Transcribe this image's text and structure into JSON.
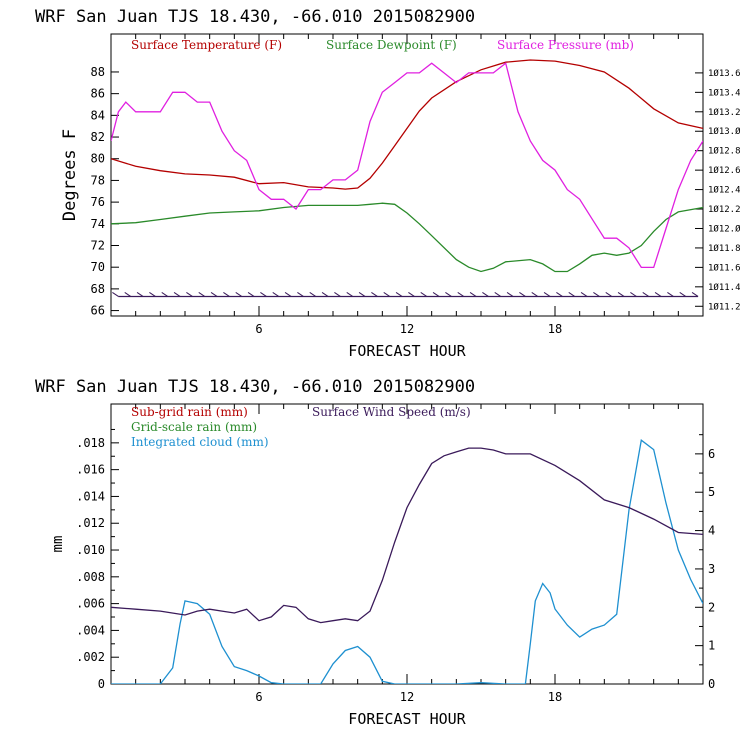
{
  "chart_data": [
    {
      "type": "line",
      "title": "WRF   San Juan TJS  18.430, -66.010  2015082900",
      "xlabel": "FORECAST HOUR",
      "ylabel": "Degrees F",
      "xlim": [
        0,
        24
      ],
      "xticks": [
        6,
        12,
        18
      ],
      "ylim": [
        65.5,
        91.5
      ],
      "yticks": [
        66,
        68,
        70,
        72,
        74,
        76,
        78,
        80,
        82,
        84,
        86,
        88
      ],
      "y2lim": [
        1011.1,
        1014.0
      ],
      "y2ticks": [
        1011.2,
        1011.4,
        1011.6,
        1011.8,
        1012.0,
        1012.2,
        1012.4,
        1012.6,
        1012.8,
        1013.0,
        1013.2,
        1013.4,
        1013.6
      ],
      "grid": false,
      "legend": "top-left",
      "series": [
        {
          "name": "Surface Temperature (F)",
          "color": "#b40000",
          "axis": "left",
          "x": [
            0,
            1,
            2,
            3,
            4,
            5,
            6,
            7,
            8,
            9,
            9.5,
            10,
            10.5,
            11,
            11.5,
            12,
            12.5,
            13,
            14,
            15,
            16,
            17,
            18,
            19,
            20,
            21,
            22,
            23,
            24
          ],
          "y": [
            80.0,
            79.3,
            78.9,
            78.6,
            78.5,
            78.3,
            77.7,
            77.8,
            77.4,
            77.3,
            77.2,
            77.3,
            78.2,
            79.6,
            81.2,
            82.8,
            84.4,
            85.6,
            87.1,
            88.2,
            88.9,
            89.1,
            89.0,
            88.6,
            88.0,
            86.5,
            84.6,
            83.3,
            82.8
          ]
        },
        {
          "name": "Surface Dewpoint (F)",
          "color": "#2a8a2a",
          "axis": "left",
          "x": [
            0,
            1,
            2,
            3,
            4,
            5,
            6,
            7,
            8,
            9,
            10,
            10.5,
            11,
            11.5,
            12,
            12.5,
            13,
            14,
            14.5,
            15,
            15.5,
            16,
            17,
            17.5,
            18,
            18.5,
            19,
            19.5,
            20,
            20.5,
            21,
            21.5,
            22,
            22.5,
            23,
            24
          ],
          "y": [
            74.0,
            74.1,
            74.4,
            74.7,
            75.0,
            75.1,
            75.2,
            75.5,
            75.7,
            75.7,
            75.7,
            75.8,
            75.9,
            75.8,
            75.0,
            74.0,
            72.9,
            70.7,
            70.0,
            69.6,
            69.9,
            70.5,
            70.7,
            70.3,
            69.6,
            69.6,
            70.3,
            71.1,
            71.3,
            71.1,
            71.3,
            72.0,
            73.3,
            74.4,
            75.1,
            75.5
          ]
        },
        {
          "name": "Surface Pressure (mb)",
          "color": "#e020e0",
          "axis": "right",
          "x": [
            0,
            0.3,
            0.6,
            1,
            1.5,
            2,
            2.5,
            3,
            3.5,
            4,
            4.5,
            5,
            5.5,
            6,
            6.5,
            7,
            7.5,
            8,
            8.5,
            9,
            9.5,
            10,
            10.5,
            11,
            11.5,
            12,
            12.5,
            13,
            13.5,
            14,
            14.5,
            15,
            15.5,
            16,
            16.5,
            17,
            17.5,
            18,
            18.5,
            19,
            19.5,
            20,
            20.5,
            21,
            21.5,
            22,
            22.5,
            23,
            23.5,
            24
          ],
          "y": [
            1012.9,
            1013.2,
            1013.3,
            1013.2,
            1013.2,
            1013.2,
            1013.4,
            1013.4,
            1013.3,
            1013.3,
            1013.0,
            1012.8,
            1012.7,
            1012.4,
            1012.3,
            1012.3,
            1012.2,
            1012.4,
            1012.4,
            1012.5,
            1012.5,
            1012.6,
            1013.1,
            1013.4,
            1013.5,
            1013.6,
            1013.6,
            1013.7,
            1013.6,
            1013.5,
            1013.6,
            1013.6,
            1013.6,
            1013.7,
            1013.2,
            1012.9,
            1012.7,
            1012.6,
            1012.4,
            1012.3,
            1012.1,
            1011.9,
            1011.9,
            1011.8,
            1011.6,
            1011.6,
            1012.0,
            1012.4,
            1012.7,
            1012.9
          ]
        }
      ],
      "wind_barbs": {
        "name": "Surface wind barbs",
        "color": "#3a1a5a",
        "y": 67.3,
        "x": [
          0.3,
          0.8,
          1.3,
          1.8,
          2.3,
          2.8,
          3.3,
          3.8,
          4.3,
          4.8,
          5.3,
          5.8,
          6.3,
          6.8,
          7.3,
          7.8,
          8.3,
          8.8,
          9.3,
          9.8,
          10.3,
          10.8,
          11.3,
          11.8,
          12.3,
          12.8,
          13.3,
          13.8,
          14.3,
          14.8,
          15.3,
          15.8,
          16.3,
          16.8,
          17.3,
          17.8,
          18.3,
          18.8,
          19.3,
          19.8,
          20.3,
          20.8,
          21.3,
          21.8,
          22.3,
          22.8,
          23.3,
          23.8
        ]
      }
    },
    {
      "type": "line",
      "title": "WRF   San Juan TJS  18.430, -66.010  2015082900",
      "xlabel": "FORECAST HOUR",
      "ylabel": "mm",
      "xlim": [
        0,
        24
      ],
      "xticks": [
        6,
        12,
        18
      ],
      "ylim": [
        0,
        0.0209
      ],
      "yticks": [
        0,
        0.002,
        0.004,
        0.006,
        0.008,
        0.01,
        0.012,
        0.014,
        0.016,
        0.018
      ],
      "ytick_labels": [
        "0",
        ".002",
        ".004",
        ".006",
        ".008",
        ".010",
        ".012",
        ".014",
        ".016",
        ".018"
      ],
      "y2lim": [
        0,
        7.3
      ],
      "y2ticks": [
        0,
        1,
        2,
        3,
        4,
        5,
        6
      ],
      "grid": false,
      "legend": "top-left",
      "series": [
        {
          "name": "Sub-grid rain (mm)",
          "color": "#b40000",
          "axis": "left",
          "x": [],
          "y": []
        },
        {
          "name": "Grid-scale rain (mm)",
          "color": "#2a8a2a",
          "axis": "left",
          "x": [],
          "y": []
        },
        {
          "name": "Integrated cloud (mm)",
          "color": "#1e90d0",
          "axis": "left",
          "x": [
            0,
            1.5,
            2,
            2.5,
            2.8,
            3,
            3.5,
            4,
            4.5,
            5,
            5.5,
            6,
            6.5,
            7,
            8,
            8.5,
            9,
            9.5,
            10,
            10.5,
            11,
            11.5,
            12,
            13,
            14,
            15,
            16,
            16.8,
            17,
            17.2,
            17.5,
            17.8,
            18,
            18.5,
            19,
            19.5,
            20,
            20.5,
            21,
            21.5,
            22,
            22.5,
            23,
            23.5,
            24
          ],
          "y": [
            0,
            0,
            0,
            0.0012,
            0.0045,
            0.0062,
            0.006,
            0.0052,
            0.0028,
            0.0013,
            0.001,
            0.0006,
            0.0001,
            0,
            0,
            0,
            0.0015,
            0.0025,
            0.0028,
            0.002,
            0.0002,
            0,
            0,
            0,
            0,
            0.0001,
            0,
            0,
            0.003,
            0.0062,
            0.0075,
            0.0068,
            0.0056,
            0.0044,
            0.0035,
            0.0041,
            0.0044,
            0.0052,
            0.013,
            0.0182,
            0.0175,
            0.0135,
            0.01,
            0.0078,
            0.006
          ]
        },
        {
          "name": "Surface Wind Speed (m/s)",
          "color": "#3a1a5a",
          "axis": "right",
          "x": [
            0,
            1,
            2,
            3,
            3.5,
            4,
            4.5,
            5,
            5.5,
            6,
            6.5,
            7,
            7.5,
            8,
            8.5,
            9,
            9.5,
            10,
            10.5,
            11,
            11.5,
            12,
            12.5,
            13,
            13.5,
            14,
            14.5,
            15,
            15.5,
            16,
            17,
            18,
            19,
            20,
            21,
            22,
            23,
            24
          ],
          "y": [
            2.0,
            1.95,
            1.9,
            1.8,
            1.9,
            1.95,
            1.9,
            1.85,
            1.95,
            1.65,
            1.75,
            2.05,
            2.0,
            1.7,
            1.6,
            1.65,
            1.7,
            1.65,
            1.9,
            2.7,
            3.7,
            4.6,
            5.2,
            5.75,
            5.95,
            6.05,
            6.15,
            6.15,
            6.1,
            6.0,
            6.0,
            5.7,
            5.3,
            4.8,
            4.6,
            4.3,
            3.95,
            3.9
          ]
        }
      ]
    }
  ]
}
